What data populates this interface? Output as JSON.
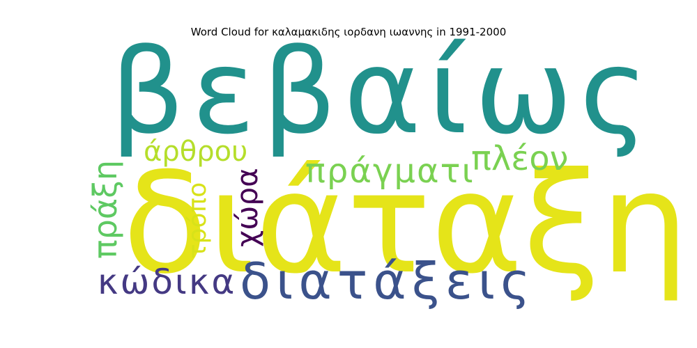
{
  "title": "Word Cloud for καλαμακιδης ιορδανη ιωαννης in 1991-2000",
  "words": [
    {
      "text": "βεβαίως",
      "color": "#21918c",
      "orientation": "horizontal"
    },
    {
      "text": "διάταξη",
      "color": "#e5e419",
      "orientation": "horizontal"
    },
    {
      "text": "διατάξεις",
      "color": "#3b528b",
      "orientation": "horizontal"
    },
    {
      "text": "πράγματι",
      "color": "#7ad151",
      "orientation": "horizontal"
    },
    {
      "text": "πλέον",
      "color": "#7ad151",
      "orientation": "horizontal"
    },
    {
      "text": "άρθρου",
      "color": "#b5de2b",
      "orientation": "horizontal"
    },
    {
      "text": "κώδικα",
      "color": "#443983",
      "orientation": "horizontal"
    },
    {
      "text": "χώρα",
      "color": "#440154",
      "orientation": "vertical"
    },
    {
      "text": "τρόπο",
      "color": "#d8e219",
      "orientation": "vertical"
    },
    {
      "text": "πράξη",
      "color": "#5ec962",
      "orientation": "vertical"
    }
  ]
}
